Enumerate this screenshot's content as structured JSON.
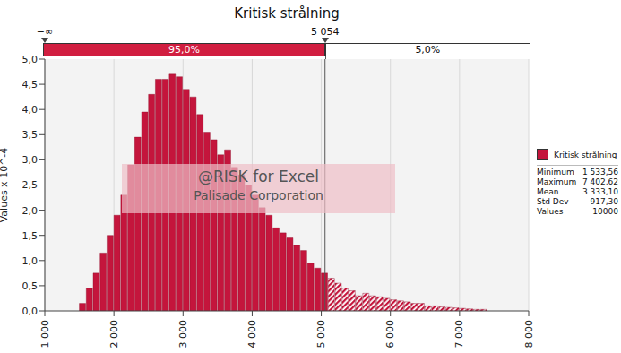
{
  "chart_data": {
    "type": "histogram",
    "title": "Kritisk strålning",
    "ylabel": "Values x 10^-4",
    "bins": [
      1500,
      1600,
      1700,
      1800,
      1900,
      2000,
      2100,
      2200,
      2300,
      2400,
      2500,
      2600,
      2700,
      2800,
      2900,
      3000,
      3100,
      3200,
      3300,
      3400,
      3500,
      3600,
      3700,
      3800,
      3900,
      4000,
      4100,
      4200,
      4300,
      4400,
      4500,
      4600,
      4700,
      4800,
      4900,
      5000,
      5100,
      5200,
      5300,
      5400,
      5500,
      5600,
      5700,
      5800,
      5900,
      6000,
      6100,
      6200,
      6300,
      6400,
      6500,
      6600,
      6700,
      6800,
      6900,
      7000,
      7100,
      7200,
      7300,
      7400
    ],
    "series": [
      {
        "name": "Kritisk strålning",
        "color": "#c4153c",
        "values": [
          0.15,
          0.45,
          0.75,
          1.15,
          1.5,
          1.9,
          2.3,
          2.9,
          3.45,
          3.95,
          4.3,
          4.6,
          4.6,
          4.7,
          4.65,
          4.4,
          4.25,
          3.9,
          3.55,
          3.4,
          3.1,
          3.2,
          2.85,
          2.7,
          2.5,
          2.3,
          2.05,
          1.9,
          1.65,
          1.55,
          1.45,
          1.3,
          1.2,
          0.95,
          0.85,
          0.75,
          0.65,
          0.55,
          0.45,
          0.4,
          0.3,
          0.35,
          0.3,
          0.28,
          0.25,
          0.22,
          0.2,
          0.18,
          0.15,
          0.15,
          0.1,
          0.1,
          0.08,
          0.07,
          0.06,
          0.05,
          0.04,
          0.03,
          0.03
        ]
      }
    ],
    "xlim": [
      1000,
      8000
    ],
    "xticks": [
      {
        "value": 1000,
        "label": "1 000"
      },
      {
        "value": 2000,
        "label": "2 000"
      },
      {
        "value": 3000,
        "label": "3 000"
      },
      {
        "value": 4000,
        "label": "4 000"
      },
      {
        "value": 5000,
        "label": "5 000"
      },
      {
        "value": 6000,
        "label": "6 000"
      },
      {
        "value": 7000,
        "label": "7 000"
      },
      {
        "value": 8000,
        "label": "8 000"
      }
    ],
    "ylim": [
      0,
      5
    ],
    "yticks": [
      {
        "value": 0,
        "label": "0,0"
      },
      {
        "value": 0.5,
        "label": "0,5"
      },
      {
        "value": 1,
        "label": "1,0"
      },
      {
        "value": 1.5,
        "label": "1,5"
      },
      {
        "value": 2,
        "label": "2,0"
      },
      {
        "value": 2.5,
        "label": "2,5"
      },
      {
        "value": 3,
        "label": "3,0"
      },
      {
        "value": 3.5,
        "label": "3,5"
      },
      {
        "value": 4,
        "label": "4,0"
      },
      {
        "value": 4.5,
        "label": "4,5"
      },
      {
        "value": 5,
        "label": "5,0"
      }
    ],
    "grid": true,
    "legend": "right",
    "percentile_bar": {
      "markers": [
        {
          "label": "−∞"
        },
        {
          "value": 5054,
          "label": "5 054"
        }
      ],
      "segments": [
        {
          "label": "95,0%",
          "color": "#d11e40"
        },
        {
          "label": "5,0%",
          "color": "#ffffff"
        }
      ]
    },
    "stats": [
      {
        "name": "Minimum",
        "value": 1533.56,
        "label": "1 533,56"
      },
      {
        "name": "Maximum",
        "value": 7402.62,
        "label": "7 402,62"
      },
      {
        "name": "Mean",
        "value": 3333.1,
        "label": "3 333,10"
      },
      {
        "name": "Std Dev",
        "value": 917.3,
        "label": "917,30"
      },
      {
        "name": "Values",
        "value": 10000
      }
    ],
    "annotations": [
      "@RISK for Excel",
      "Palisade Corporation"
    ]
  }
}
